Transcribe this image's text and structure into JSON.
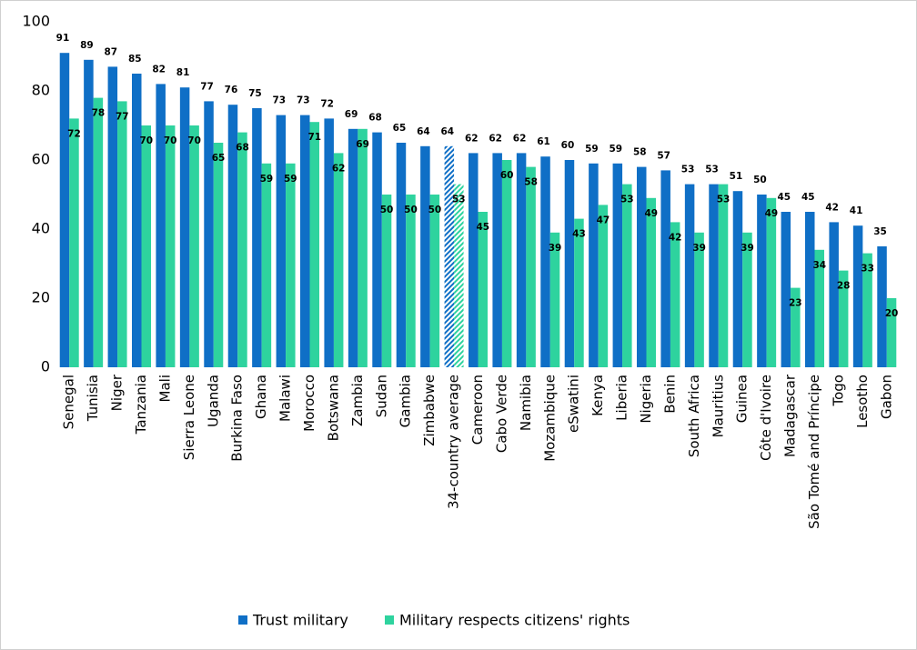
{
  "chart_data": {
    "type": "bar",
    "categories": [
      "Senegal",
      "Tunisia",
      "Niger",
      "Tanzania",
      "Mali",
      "Sierra Leone",
      "Uganda",
      "Burkina Faso",
      "Ghana",
      "Malawi",
      "Morocco",
      "Botswana",
      "Zambia",
      "Sudan",
      "Gambia",
      "Zimbabwe",
      "34-country average",
      "Cameroon",
      "Cabo Verde",
      "Namibia",
      "Mozambique",
      "eSwatini",
      "Kenya",
      "Liberia",
      "Nigeria",
      "Benin",
      "South Africa",
      "Mauritius",
      "Guinea",
      "Côte d'Ivoire",
      "Madagascar",
      "São Tomé and Príncipe",
      "Togo",
      "Lesotho",
      "Gabon"
    ],
    "series": [
      {
        "name": "Trust military",
        "color": "#0f6fc6",
        "values": [
          91,
          89,
          87,
          85,
          82,
          81,
          77,
          76,
          75,
          73,
          73,
          72,
          69,
          68,
          65,
          64,
          64,
          62,
          62,
          62,
          61,
          60,
          59,
          59,
          58,
          57,
          53,
          53,
          51,
          50,
          45,
          45,
          42,
          41,
          35
        ]
      },
      {
        "name": "Military respects citizens' rights",
        "color": "#2ed39e",
        "values": [
          72,
          78,
          77,
          70,
          70,
          70,
          65,
          68,
          59,
          59,
          71,
          62,
          69,
          50,
          50,
          50,
          53,
          45,
          60,
          58,
          39,
          43,
          47,
          53,
          49,
          42,
          39,
          53,
          39,
          49,
          23,
          34,
          28,
          33,
          20
        ]
      }
    ],
    "highlight_category_index": 16,
    "ylim": [
      0,
      100
    ],
    "yticks": [
      0,
      20,
      40,
      60,
      80,
      100
    ],
    "grid": false,
    "legend": "bottom"
  }
}
